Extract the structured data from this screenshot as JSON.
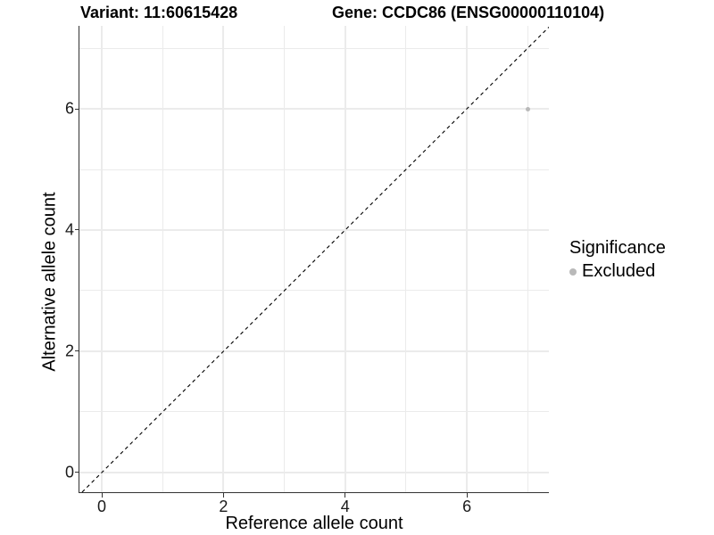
{
  "header": {
    "variant_title": "Variant: 11:60615428",
    "gene_title": "Gene: CCDC86 (ENSG00000110104)"
  },
  "chart_data": {
    "type": "scatter",
    "title": "Variant: 11:60615428 / Gene: CCDC86 (ENSG00000110104)",
    "xlabel": "Reference allele count",
    "ylabel": "Alternative allele count",
    "xlim": [
      -0.367,
      7.348
    ],
    "ylim": [
      -0.324,
      7.368
    ],
    "x_major_ticks": [
      0,
      2,
      4,
      6
    ],
    "y_major_ticks": [
      0,
      2,
      4,
      6
    ],
    "x_minor_ticks": [
      1,
      3,
      5,
      7
    ],
    "y_minor_ticks": [
      1,
      3,
      5,
      7
    ],
    "grid": "major+minor",
    "reference_line": {
      "kind": "identity",
      "equation": "y = x",
      "style": "dashed",
      "color": "#000000"
    },
    "series": [
      {
        "name": "Excluded",
        "color": "#b9b9b9",
        "points": [
          {
            "x": 7,
            "y": 6
          }
        ]
      }
    ],
    "legend": {
      "title": "Significance",
      "position": "right",
      "items": [
        {
          "label": "Excluded",
          "color": "#b9b9b9"
        }
      ]
    }
  },
  "legend": {
    "title": "Significance",
    "item_label": "Excluded"
  },
  "colors": {
    "background": "#ffffff",
    "point": "#b9b9b9",
    "axis_line": "#333333",
    "grid": "#ebebeb",
    "reference_line": "#000000",
    "text": "#000000"
  }
}
